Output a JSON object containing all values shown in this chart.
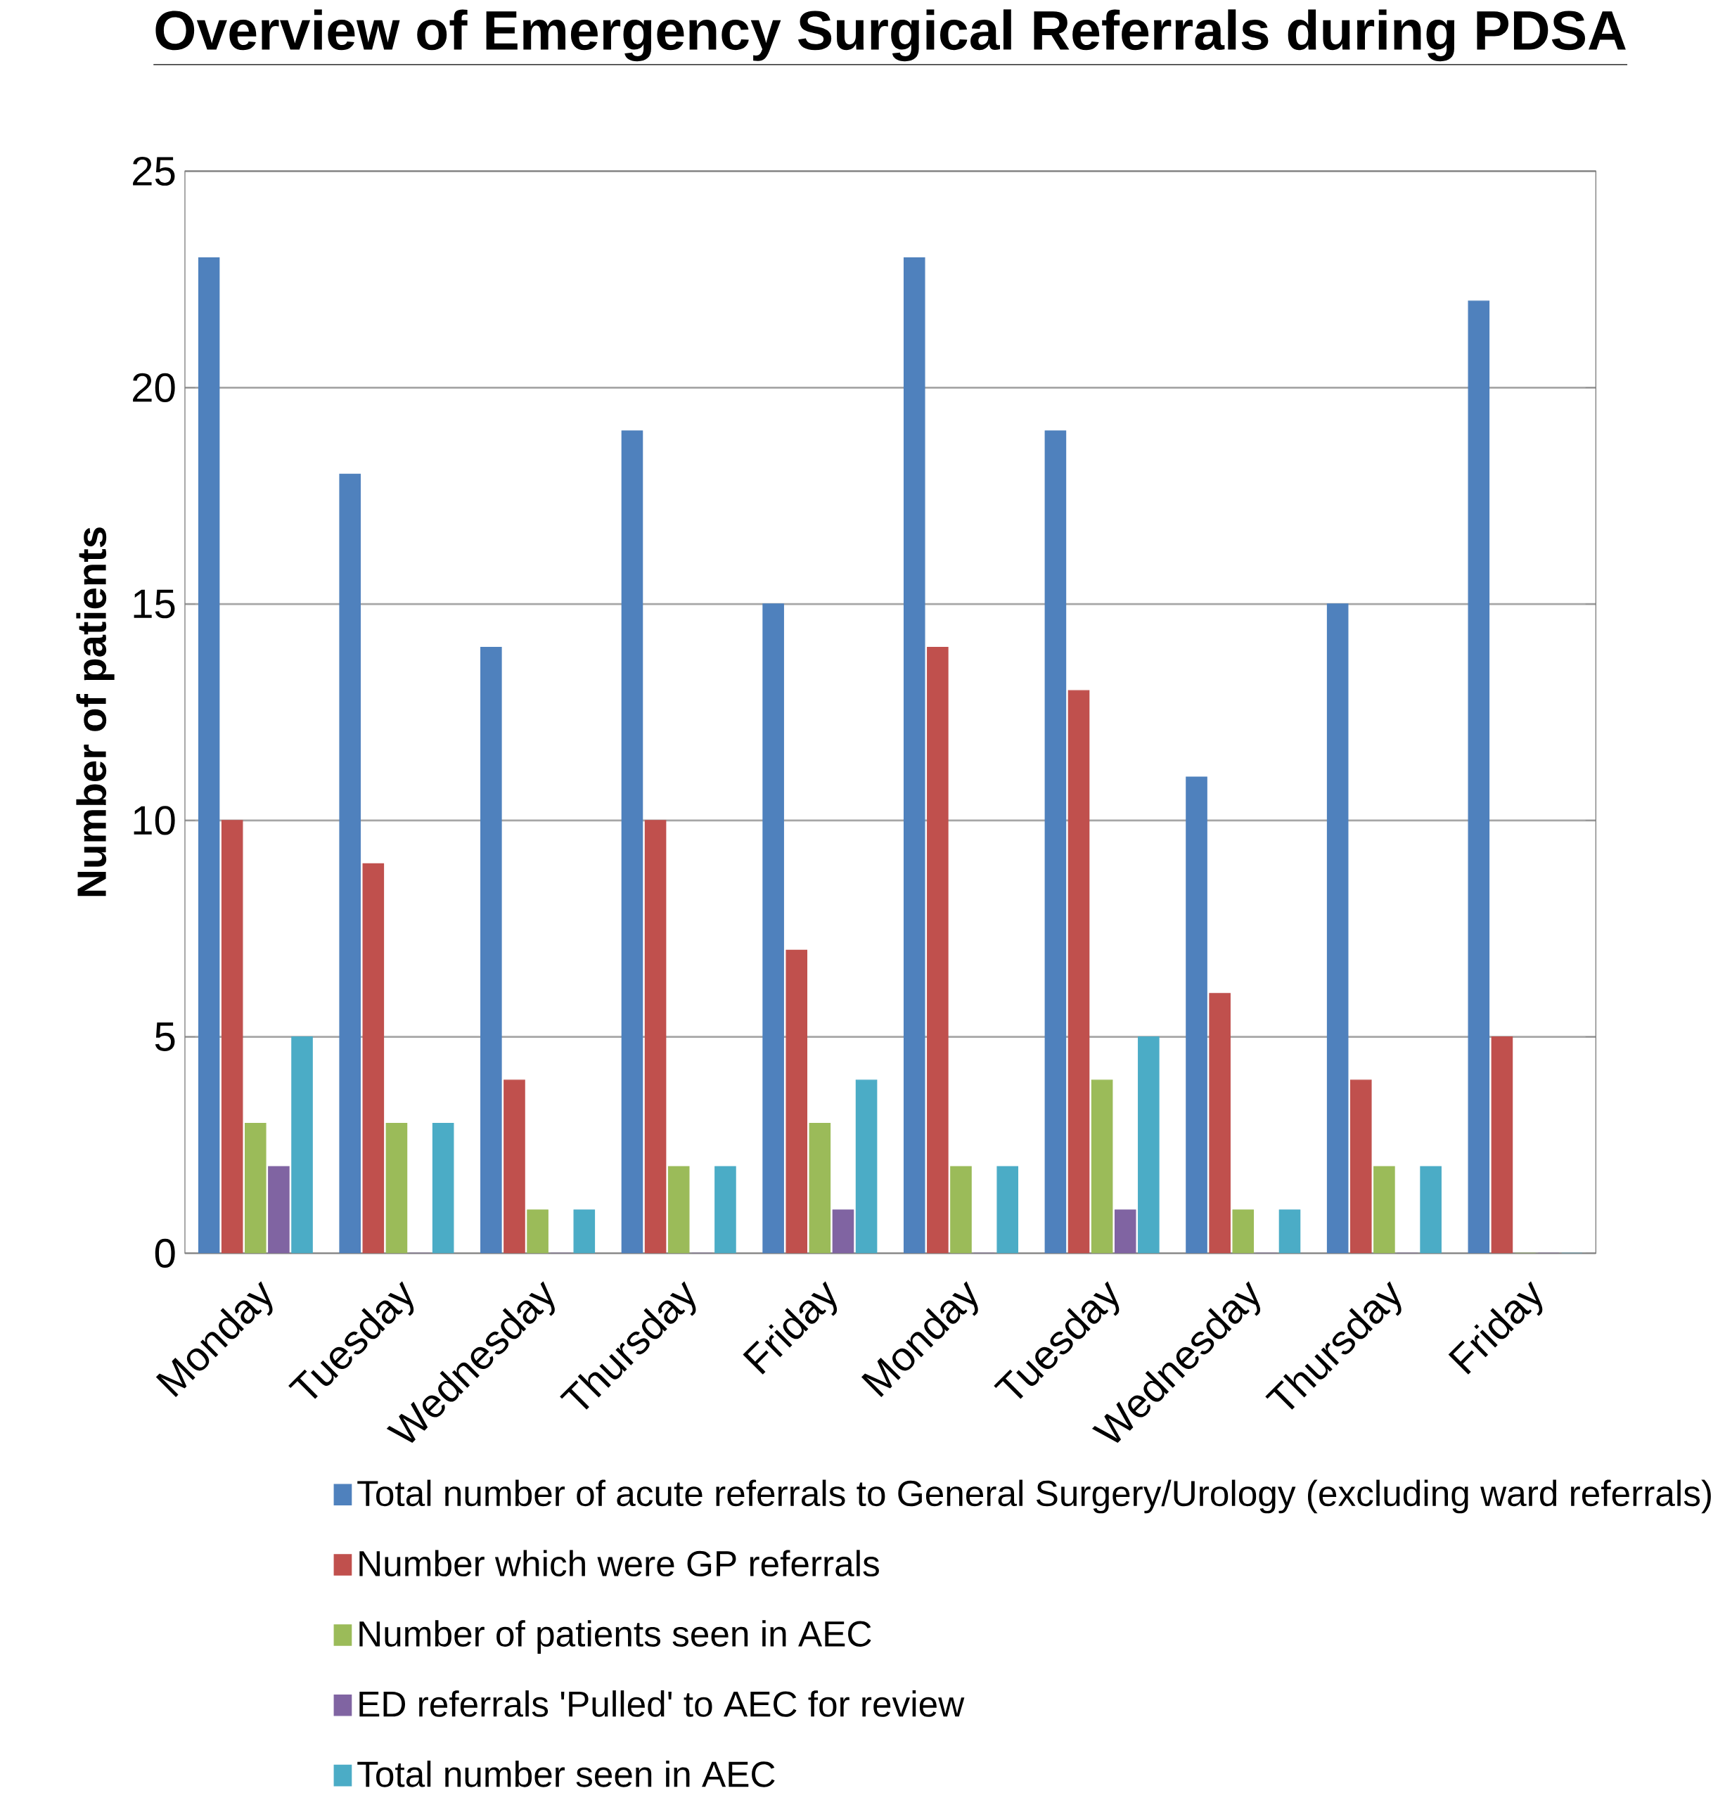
{
  "chart_data": {
    "type": "bar",
    "title": "Overview of Emergency Surgical Referrals during PDSA",
    "ylabel": "Number of patients",
    "categories": [
      "Monday",
      "Tuesday",
      "Wednesday",
      "Thursday",
      "Friday",
      "Monday",
      "Tuesday",
      "Wednesday",
      "Thursday",
      "Friday"
    ],
    "ylim": [
      0,
      25
    ],
    "yticks": [
      0,
      5,
      10,
      15,
      20,
      25
    ],
    "grid": "y",
    "legend": "bottom",
    "series": [
      {
        "name": "Total number of acute referrals to General Surgery/Urology (excluding ward referrals)",
        "color": "#4f81bd",
        "values": [
          23,
          18,
          14,
          19,
          15,
          23,
          19,
          11,
          15,
          22
        ]
      },
      {
        "name": "Number which were GP referrals",
        "color": "#c0504d",
        "values": [
          10,
          9,
          4,
          10,
          7,
          14,
          13,
          6,
          4,
          5
        ]
      },
      {
        "name": "Number of patients seen in AEC",
        "color": "#9bbb59",
        "values": [
          3,
          3,
          1,
          2,
          3,
          2,
          4,
          1,
          2,
          0
        ]
      },
      {
        "name": "ED referrals 'Pulled' to AEC for review",
        "color": "#8064a2",
        "values": [
          2,
          0,
          0,
          0,
          1,
          0,
          1,
          0,
          0,
          0
        ]
      },
      {
        "name": "Total number seen in AEC",
        "color": "#4bacc6",
        "values": [
          5,
          3,
          1,
          2,
          4,
          2,
          5,
          1,
          2,
          0
        ]
      }
    ]
  }
}
